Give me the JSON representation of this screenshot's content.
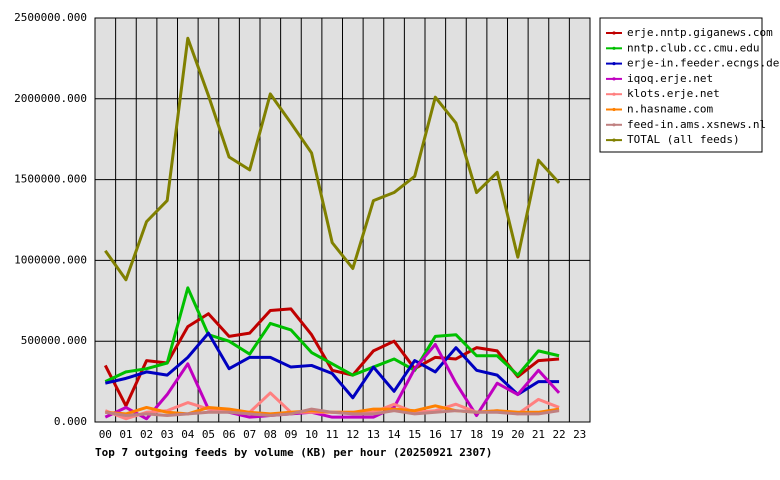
{
  "chart_data": {
    "type": "line",
    "title": "Top 7 outgoing feeds by volume (KB) per hour (20250921 2307)",
    "categories": [
      "00",
      "01",
      "02",
      "03",
      "04",
      "05",
      "06",
      "07",
      "08",
      "09",
      "10",
      "11",
      "12",
      "13",
      "14",
      "15",
      "16",
      "17",
      "18",
      "19",
      "20",
      "21",
      "22",
      "23"
    ],
    "ylim": [
      0,
      2500000
    ],
    "yticks": [
      {
        "value": 0,
        "label": "0.000"
      },
      {
        "value": 500000,
        "label": "500000.000"
      },
      {
        "value": 1000000,
        "label": "1000000.000"
      },
      {
        "value": 1500000,
        "label": "1500000.000"
      },
      {
        "value": 2000000,
        "label": "2000000.000"
      },
      {
        "value": 2500000,
        "label": "2500000.000"
      }
    ],
    "grid": true,
    "legend": "right",
    "series": [
      {
        "name": "erje.nntp.giganews.com",
        "color": "#c00000",
        "values": [
          350000,
          100000,
          380000,
          365000,
          590000,
          670000,
          530000,
          550000,
          690000,
          700000,
          540000,
          320000,
          290000,
          440000,
          500000,
          330000,
          400000,
          390000,
          460000,
          440000,
          280000,
          380000,
          390000,
          null
        ]
      },
      {
        "name": "nntp.club.cc.cmu.edu",
        "color": "#00c000",
        "values": [
          250000,
          310000,
          330000,
          365000,
          830000,
          540000,
          500000,
          420000,
          610000,
          570000,
          430000,
          360000,
          290000,
          340000,
          390000,
          320000,
          530000,
          540000,
          410000,
          410000,
          290000,
          440000,
          410000,
          null
        ]
      },
      {
        "name": "erje-in.feeder.ecngs.de",
        "color": "#0000c0",
        "values": [
          240000,
          270000,
          310000,
          290000,
          400000,
          550000,
          330000,
          400000,
          400000,
          340000,
          350000,
          300000,
          150000,
          340000,
          190000,
          380000,
          310000,
          460000,
          320000,
          290000,
          170000,
          250000,
          250000,
          null
        ]
      },
      {
        "name": "iqoq.erje.net",
        "color": "#c000c0",
        "values": [
          30000,
          90000,
          20000,
          170000,
          360000,
          80000,
          60000,
          30000,
          40000,
          50000,
          60000,
          30000,
          30000,
          30000,
          90000,
          330000,
          480000,
          240000,
          40000,
          240000,
          170000,
          320000,
          180000,
          null
        ]
      },
      {
        "name": "klots.erje.net",
        "color": "#ff8080",
        "values": [
          70000,
          20000,
          60000,
          70000,
          120000,
          80000,
          70000,
          60000,
          180000,
          60000,
          60000,
          60000,
          60000,
          60000,
          110000,
          60000,
          70000,
          110000,
          60000,
          70000,
          50000,
          140000,
          90000,
          null
        ]
      },
      {
        "name": "n.hasname.com",
        "color": "#ff8000",
        "values": [
          60000,
          50000,
          90000,
          60000,
          50000,
          90000,
          80000,
          60000,
          50000,
          60000,
          70000,
          60000,
          60000,
          80000,
          80000,
          70000,
          100000,
          70000,
          60000,
          70000,
          60000,
          60000,
          80000,
          null
        ]
      },
      {
        "name": "feed-in.ams.xsnews.nl",
        "color": "#c08080",
        "values": [
          60000,
          40000,
          50000,
          40000,
          50000,
          60000,
          60000,
          50000,
          40000,
          50000,
          80000,
          60000,
          50000,
          50000,
          70000,
          50000,
          60000,
          70000,
          60000,
          60000,
          50000,
          50000,
          70000,
          null
        ]
      },
      {
        "name": "TOTAL (all feeds)",
        "color": "#808000",
        "values": [
          1060000,
          880000,
          1240000,
          1370000,
          2375000,
          2020000,
          1640000,
          1560000,
          2030000,
          1850000,
          1665000,
          1110000,
          950000,
          1370000,
          1420000,
          1520000,
          2010000,
          1850000,
          1420000,
          1545000,
          1020000,
          1620000,
          1480000,
          null
        ]
      }
    ]
  }
}
